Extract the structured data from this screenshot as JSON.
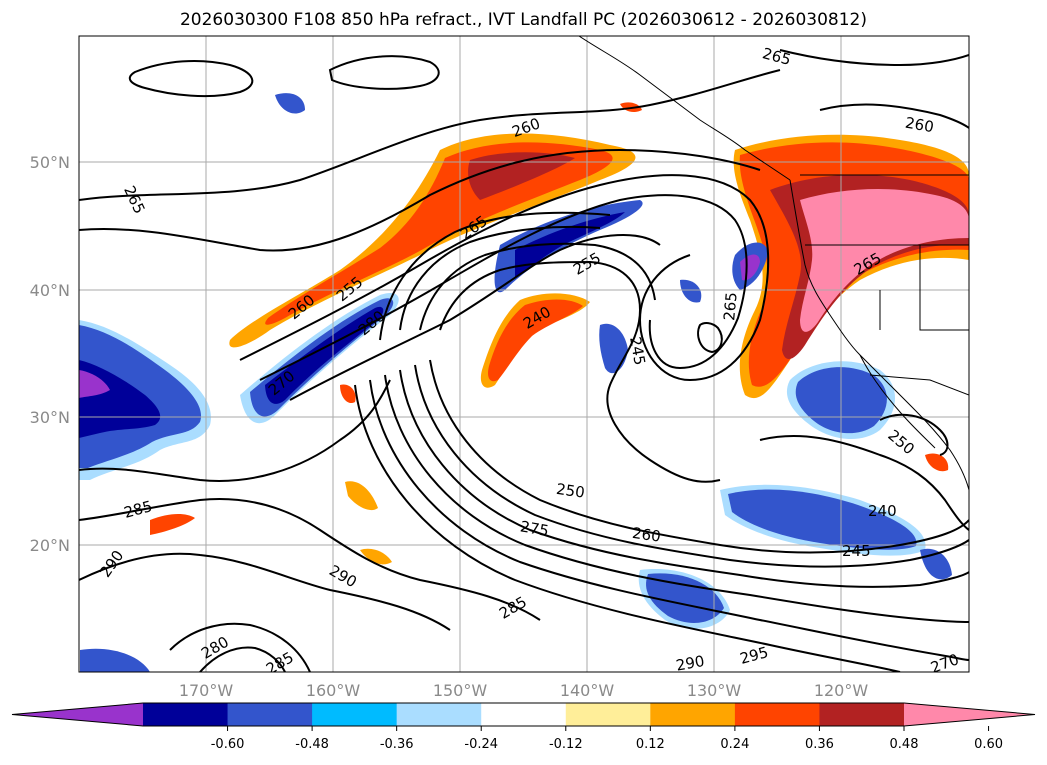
{
  "title": "2026030300 F108 850 hPa refract., IVT Landfall PC (2026030612 - 2026030812)",
  "map": {
    "lon_labels": [
      "170°W",
      "160°W",
      "150°W",
      "140°W",
      "130°W",
      "120°W"
    ],
    "lat_labels": [
      "50°N",
      "40°N",
      "30°N",
      "20°N"
    ],
    "contour_labels": [
      {
        "text": "265"
      },
      {
        "text": "260"
      },
      {
        "text": "265"
      },
      {
        "text": "260"
      },
      {
        "text": "265"
      },
      {
        "text": "255"
      },
      {
        "text": "260"
      },
      {
        "text": "255"
      },
      {
        "text": "280"
      },
      {
        "text": "270"
      },
      {
        "text": "240"
      },
      {
        "text": "245"
      },
      {
        "text": "265"
      },
      {
        "text": "265"
      },
      {
        "text": "250"
      },
      {
        "text": "260"
      },
      {
        "text": "275"
      },
      {
        "text": "285"
      },
      {
        "text": "290"
      },
      {
        "text": "290"
      },
      {
        "text": "285"
      },
      {
        "text": "280"
      },
      {
        "text": "285"
      },
      {
        "text": "290"
      },
      {
        "text": "295"
      },
      {
        "text": "240"
      },
      {
        "text": "245"
      },
      {
        "text": "250"
      },
      {
        "text": "270"
      }
    ]
  },
  "colorbar": {
    "colors": [
      "#9933cc",
      "#000099",
      "#3355cc",
      "#00bbff",
      "#aaddff",
      "#ffffff",
      "#ffee99",
      "#ffa500",
      "#ff4400",
      "#b22222",
      "#ff88aa"
    ],
    "tick_labels": [
      "-0.60",
      "-0.48",
      "-0.36",
      "-0.24",
      "-0.12",
      "0.12",
      "0.24",
      "0.36",
      "0.48",
      "0.60"
    ]
  }
}
